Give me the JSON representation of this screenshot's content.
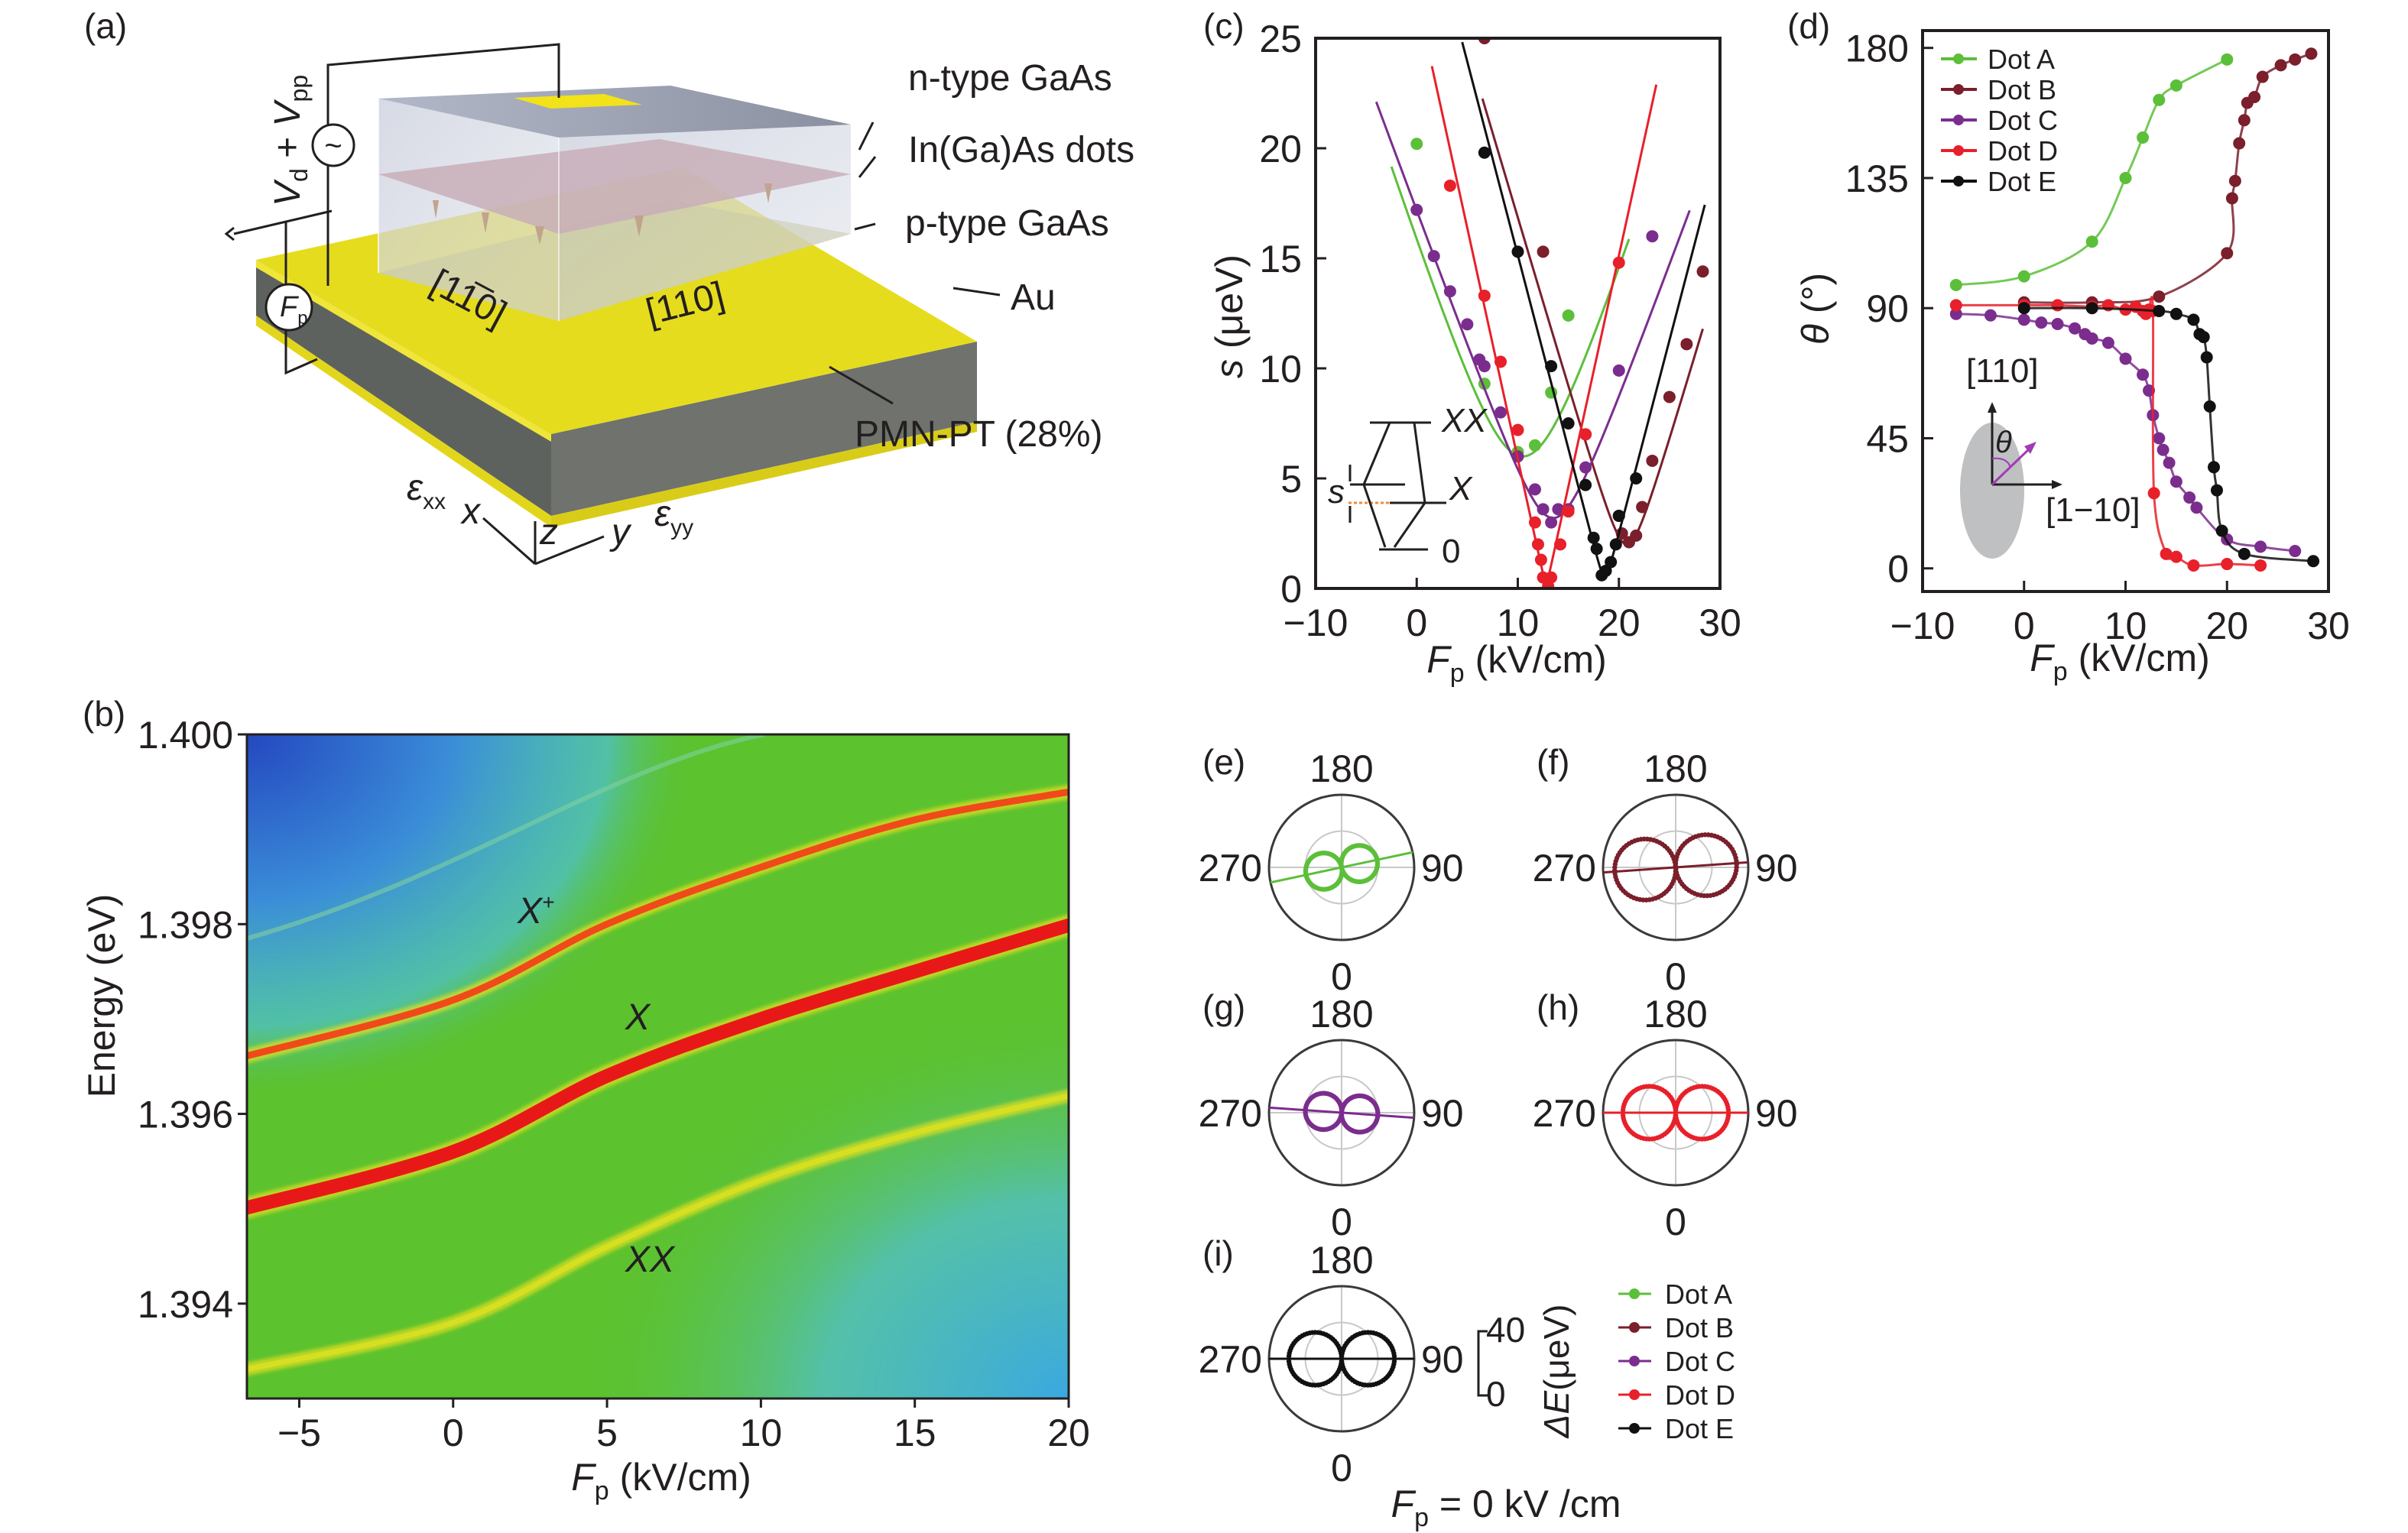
{
  "panel_labels": {
    "a": "(a)",
    "b": "(b)",
    "c": "(c)",
    "d": "(d)",
    "e": "(e)",
    "f": "(f)",
    "g": "(g)",
    "h": "(h)",
    "i": "(i)"
  },
  "panel_a": {
    "layers": {
      "n_gaas": "n-type GaAs",
      "dots": "In(Ga)As dots",
      "p_gaas": "p-type GaAs",
      "au": "Au",
      "pmnpt": "PMN-PT (28%)"
    },
    "directions": {
      "d1": "[11̅0]",
      "d2": "[110]"
    },
    "voltage": {
      "v1": "V",
      "s1": "d",
      "plus": " + ",
      "v2": "V",
      "s2": "pp"
    },
    "ac_symbol": "~",
    "field": {
      "var": "F",
      "sub": "p"
    },
    "axes": {
      "eps": "ε",
      "xx": "xx",
      "yy": "yy",
      "x": "x",
      "y": "y",
      "z": "z"
    },
    "colors": {
      "gold": "#e6dc1e",
      "slab": "#6b6e6a",
      "box": "#d8dbe6",
      "dots_plane": "#c8aeb9"
    }
  },
  "chart_data": [
    {
      "id": "b",
      "type": "heatmap",
      "title": "",
      "xlabel": {
        "var": "F",
        "sub": "p",
        "unit": " (kV/cm)"
      },
      "ylabel": "Energy (eV)",
      "xlim": [
        -6.7,
        20
      ],
      "ylim": [
        1.393,
        1.4
      ],
      "xticks": [
        -5,
        0,
        5,
        10,
        15,
        20
      ],
      "xticklabels": [
        "−5",
        "0",
        "5",
        "10",
        "15",
        "20"
      ],
      "yticks": [
        1.394,
        1.396,
        1.398,
        1.4
      ],
      "yticklabels": [
        "1.394",
        "1.396",
        "1.398",
        "1.400"
      ],
      "series": [
        {
          "name": "X+",
          "label": "X",
          "sup": "+",
          "color": "#f04a1a",
          "x": [
            -6.7,
            0,
            5,
            10,
            15,
            20
          ],
          "y": [
            1.3966,
            1.3972,
            1.398,
            1.3986,
            1.3991,
            1.3994
          ]
        },
        {
          "name": "X",
          "label": "X",
          "sup": "",
          "color": "#e81818",
          "x": [
            -6.7,
            0,
            5,
            10,
            15,
            20
          ],
          "y": [
            1.395,
            1.3956,
            1.3964,
            1.397,
            1.3975,
            1.398
          ]
        },
        {
          "name": "XX",
          "label": "XX",
          "sup": "",
          "color": "#d6e020",
          "x": [
            -6.7,
            0,
            5,
            10,
            15,
            20
          ],
          "y": [
            1.3933,
            1.3938,
            1.3946,
            1.3953,
            1.3958,
            1.3962
          ]
        }
      ]
    },
    {
      "id": "c",
      "type": "scatter",
      "xlabel": {
        "var": "F",
        "sub": "p",
        "unit": " (kV/cm)"
      },
      "ylabel": {
        "var": "s",
        "unit": " (μeV)"
      },
      "xlim": [
        -10,
        30
      ],
      "ylim": [
        0,
        25
      ],
      "xticks": [
        -10,
        0,
        10,
        20,
        30
      ],
      "xticklabels": [
        "−10",
        "0",
        "10",
        "20",
        "30"
      ],
      "yticks": [
        0,
        5,
        10,
        15,
        20,
        25
      ],
      "yticklabels": [
        "0",
        "5",
        "10",
        "15",
        "20",
        "25"
      ],
      "inset": {
        "xx": "XX",
        "x": "X",
        "zero": "0",
        "s": "s"
      },
      "series": [
        {
          "name": "Dot A",
          "color": "#5cbf3a",
          "points": [
            [
              0,
              20.2
            ],
            [
              6.7,
              9.3
            ],
            [
              10,
              6.2
            ],
            [
              11.7,
              6.5
            ],
            [
              13.3,
              8.9
            ],
            [
              15,
              12.4
            ]
          ],
          "fit": {
            "s0": 6,
            "F0": 10.5,
            "k": 1.4,
            "range": [
              -2.5,
              21
            ]
          }
        },
        {
          "name": "Dot B",
          "color": "#7a1f2b",
          "points": [
            [
              6.7,
              25
            ],
            [
              12.5,
              15.3
            ],
            [
              16.7,
              7
            ],
            [
              20,
              3.3
            ],
            [
              20.3,
              2.5
            ],
            [
              21,
              2.1
            ],
            [
              21.7,
              2.4
            ],
            [
              22.3,
              3.7
            ],
            [
              23.3,
              5.8
            ],
            [
              25,
              8.7
            ],
            [
              26.7,
              11.1
            ],
            [
              28.3,
              14.4
            ]
          ],
          "fit": {
            "s0": 2,
            "F0": 20.8,
            "k": 1.55,
            "range": [
              6.5,
              28.3
            ]
          }
        },
        {
          "name": "Dot C",
          "color": "#7b2d8e",
          "points": [
            [
              0,
              17.2
            ],
            [
              1.7,
              15.1
            ],
            [
              3.3,
              13.5
            ],
            [
              5,
              12
            ],
            [
              6.2,
              10.4
            ],
            [
              6.7,
              10.1
            ],
            [
              8.3,
              8
            ],
            [
              10,
              6
            ],
            [
              11.7,
              4.5
            ],
            [
              12.5,
              3.6
            ],
            [
              13.3,
              3
            ],
            [
              14,
              3.6
            ],
            [
              15,
              3.6
            ],
            [
              16.7,
              5.5
            ],
            [
              20,
              9.9
            ],
            [
              23.3,
              16
            ]
          ],
          "fit": {
            "s0": 3.2,
            "F0": 13.5,
            "k": 1.25,
            "range": [
              -4,
              27
            ]
          }
        },
        {
          "name": "Dot D",
          "color": "#e8202a",
          "points": [
            [
              3.3,
              18.3
            ],
            [
              6.7,
              13.3
            ],
            [
              8.3,
              10.3
            ],
            [
              10,
              7.2
            ],
            [
              11.7,
              3
            ],
            [
              12,
              2
            ],
            [
              12.3,
              1.3
            ],
            [
              12.5,
              0.5
            ],
            [
              13,
              0.1
            ],
            [
              13.3,
              0.5
            ],
            [
              14.2,
              2
            ],
            [
              15,
              3.5
            ],
            [
              16.7,
              7
            ],
            [
              20,
              14.8
            ]
          ],
          "fit": {
            "s0": 0.2,
            "F0": 12.8,
            "k": 2.1,
            "range": [
              1.5,
              23.7
            ]
          }
        },
        {
          "name": "Dot E",
          "color": "#111111",
          "points": [
            [
              6.7,
              19.8
            ],
            [
              10,
              15.3
            ],
            [
              13.3,
              10.1
            ],
            [
              15,
              7.5
            ],
            [
              16.7,
              4.7
            ],
            [
              17.5,
              2.3
            ],
            [
              17.8,
              1.8
            ],
            [
              18.3,
              0.6
            ],
            [
              18.7,
              0.8
            ],
            [
              19.2,
              1.2
            ],
            [
              19.7,
              2
            ],
            [
              20,
              3.3
            ],
            [
              21.7,
              5
            ]
          ],
          "fit": {
            "s0": 0.5,
            "F0": 18.6,
            "k": 1.76,
            "range": [
              4.5,
              28.5
            ]
          }
        }
      ]
    },
    {
      "id": "d",
      "type": "line",
      "xlabel": {
        "var": "F",
        "sub": "p",
        "unit": " (kV/cm)"
      },
      "ylabel": {
        "var": "θ",
        "unit": " (°)"
      },
      "xlim": [
        -10,
        30
      ],
      "ylim": [
        -8,
        186
      ],
      "xticks": [
        -10,
        0,
        10,
        20,
        30
      ],
      "xticklabels": [
        "−10",
        "0",
        "10",
        "20",
        "30"
      ],
      "yticks": [
        0,
        45,
        90,
        135,
        180
      ],
      "yticklabels": [
        "0",
        "45",
        "90",
        "135",
        "180"
      ],
      "legend_position": "top-left",
      "inset": {
        "up": "[110]",
        "right": "[1−10]",
        "angle": "θ"
      },
      "series": [
        {
          "name": "Dot A",
          "color": "#5cbf3a",
          "points": [
            [
              -6.7,
              98
            ],
            [
              0,
              101
            ],
            [
              6.7,
              113
            ],
            [
              10,
              135
            ],
            [
              11.7,
              149
            ],
            [
              13.3,
              162
            ],
            [
              15,
              167
            ],
            [
              20,
              176
            ]
          ]
        },
        {
          "name": "Dot B",
          "color": "#7a1f2b",
          "points": [
            [
              0,
              92
            ],
            [
              6.7,
              92
            ],
            [
              13.3,
              94
            ],
            [
              20,
              109
            ],
            [
              20.5,
              128
            ],
            [
              20.8,
              134
            ],
            [
              21.2,
              147
            ],
            [
              21.7,
              155
            ],
            [
              22,
              161
            ],
            [
              22.7,
              163
            ],
            [
              23.5,
              170
            ],
            [
              25.3,
              174
            ],
            [
              26.7,
              176
            ],
            [
              28.3,
              178
            ]
          ]
        },
        {
          "name": "Dot C",
          "color": "#7b2d8e",
          "points": [
            [
              -6.7,
              88
            ],
            [
              -3.3,
              87.5
            ],
            [
              0,
              86
            ],
            [
              1.7,
              85
            ],
            [
              3.3,
              84.5
            ],
            [
              5,
              83
            ],
            [
              6,
              81
            ],
            [
              6.7,
              79.5
            ],
            [
              8.3,
              78
            ],
            [
              10,
              72.5
            ],
            [
              11.7,
              67
            ],
            [
              12.3,
              61.5
            ],
            [
              12.7,
              53
            ],
            [
              13.3,
              45
            ],
            [
              13.7,
              41
            ],
            [
              14.3,
              36.5
            ],
            [
              15,
              30
            ],
            [
              16.3,
              24.5
            ],
            [
              17,
              21
            ],
            [
              20,
              10
            ],
            [
              23.3,
              7.5
            ],
            [
              26.7,
              6
            ]
          ]
        },
        {
          "name": "Dot D",
          "color": "#e8202a",
          "points": [
            [
              -6.7,
              91
            ],
            [
              0,
              91
            ],
            [
              3.3,
              91
            ],
            [
              6.7,
              90.5
            ],
            [
              8.3,
              91
            ],
            [
              10,
              89.5
            ],
            [
              11,
              90.5
            ],
            [
              11.7,
              89
            ],
            [
              12,
              88
            ],
            [
              12.3,
              89.5
            ],
            [
              12.7,
              89
            ],
            [
              12.8,
              26
            ],
            [
              14,
              5
            ],
            [
              15,
              4
            ],
            [
              16.7,
              1
            ],
            [
              20,
              1.5
            ],
            [
              23.3,
              1
            ]
          ]
        },
        {
          "name": "Dot E",
          "color": "#111111",
          "points": [
            [
              0,
              90
            ],
            [
              6.7,
              90
            ],
            [
              13.3,
              89
            ],
            [
              15,
              88
            ],
            [
              16.7,
              86
            ],
            [
              17.3,
              81
            ],
            [
              17.7,
              80
            ],
            [
              18,
              73
            ],
            [
              18.3,
              56
            ],
            [
              18.7,
              35
            ],
            [
              19,
              27
            ],
            [
              19.5,
              13
            ],
            [
              21.7,
              5
            ],
            [
              28.5,
              2.5
            ]
          ]
        }
      ]
    },
    {
      "id": "polar",
      "type": "polar",
      "angle_labels": {
        "top": "180",
        "right": "90",
        "bottom": "0",
        "left": "270"
      },
      "rmax_ueV": 44,
      "scale_bar": {
        "max": "40",
        "min": "0",
        "label_var": "ΔE",
        "label_unit": "(μeV)"
      },
      "caption": {
        "var": "F",
        "sub": "p",
        "rest": " = 0 kV /cm"
      },
      "plots": [
        {
          "panel": "e",
          "name": "Dot A",
          "color": "#5cbf3a",
          "amplitude_ueV": 22,
          "axis_angle_deg": 102
        },
        {
          "panel": "f",
          "name": "Dot B",
          "color": "#7a1f2b",
          "amplitude_ueV": 37,
          "axis_angle_deg": 94
        },
        {
          "panel": "g",
          "name": "Dot C",
          "color": "#7b2d8e",
          "amplitude_ueV": 22,
          "axis_angle_deg": 86
        },
        {
          "panel": "h",
          "name": "Dot D",
          "color": "#e8202a",
          "amplitude_ueV": 32,
          "axis_angle_deg": 90
        },
        {
          "panel": "i",
          "name": "Dot E",
          "color": "#111111",
          "amplitude_ueV": 32,
          "axis_angle_deg": 90
        }
      ],
      "legend": [
        "Dot A",
        "Dot B",
        "Dot C",
        "Dot D",
        "Dot E"
      ]
    }
  ]
}
